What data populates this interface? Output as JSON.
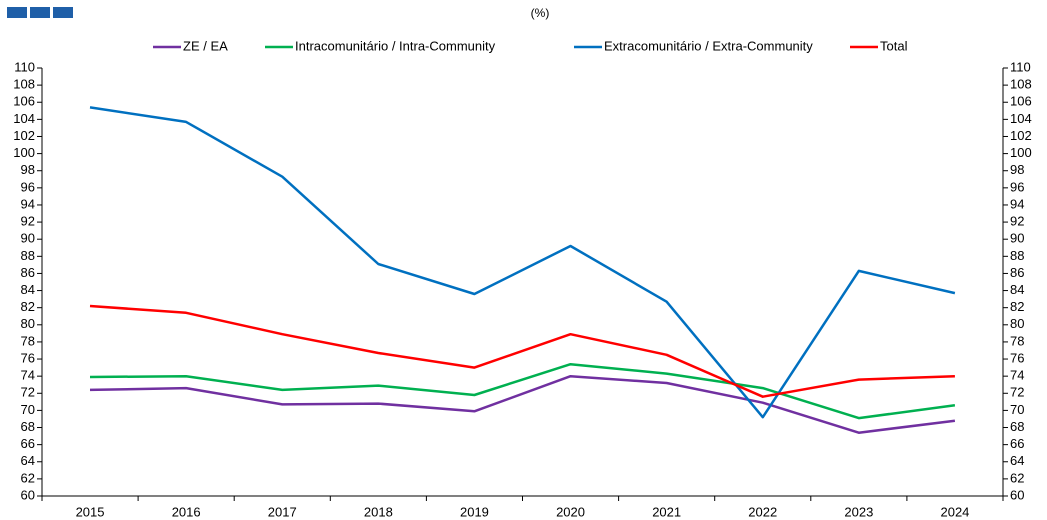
{
  "chart_data": {
    "type": "line",
    "subtitle": "(%)",
    "categories": [
      "2015",
      "2016",
      "2017",
      "2018",
      "2019",
      "2020",
      "2021",
      "2022",
      "2023",
      "2024"
    ],
    "series": [
      {
        "name": "ZE / EA",
        "color": "#7030a0",
        "values": [
          72.4,
          72.6,
          70.7,
          70.8,
          69.9,
          74.0,
          73.2,
          70.9,
          67.4,
          68.8
        ]
      },
      {
        "name": "Intracomunitário / Intra-Community",
        "color": "#00b050",
        "values": [
          73.9,
          74.0,
          72.4,
          72.9,
          71.8,
          75.4,
          74.3,
          72.6,
          69.1,
          70.6
        ]
      },
      {
        "name": "Extracomunitário / Extra-Community",
        "color": "#0070c0",
        "values": [
          105.4,
          103.7,
          97.3,
          87.1,
          83.6,
          89.2,
          82.7,
          69.2,
          86.3,
          83.7
        ]
      },
      {
        "name": "Total",
        "color": "#ff0000",
        "values": [
          82.2,
          81.4,
          78.9,
          76.7,
          75.0,
          78.9,
          76.5,
          71.6,
          73.6,
          74.0
        ]
      }
    ],
    "ylim": [
      60,
      110
    ],
    "yticks": [
      60,
      62,
      64,
      66,
      68,
      70,
      72,
      74,
      76,
      78,
      80,
      82,
      84,
      86,
      88,
      90,
      92,
      94,
      96,
      98,
      100,
      102,
      104,
      106,
      108,
      110
    ],
    "y2lim": [
      60,
      110
    ],
    "y2ticks": [
      60,
      62,
      64,
      66,
      68,
      70,
      72,
      74,
      76,
      78,
      80,
      82,
      84,
      86,
      88,
      90,
      92,
      94,
      96,
      98,
      100,
      102,
      104,
      106,
      108,
      110
    ],
    "legend": "top",
    "grid": false
  }
}
